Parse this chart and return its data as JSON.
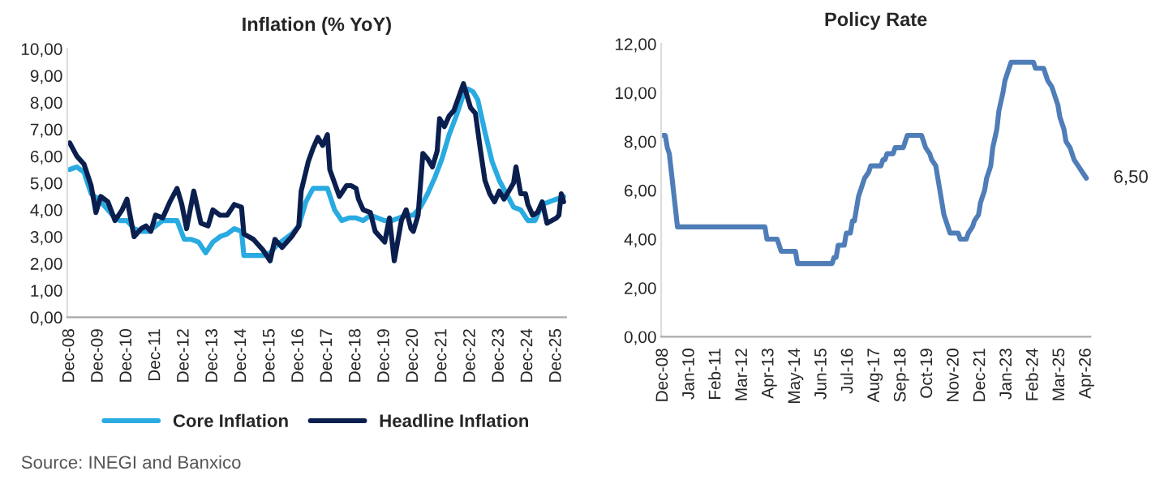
{
  "chart_data": [
    {
      "type": "line",
      "title": "Inflation (% YoY)",
      "legend": "bottom",
      "grid": false,
      "xlim": [
        "2008-11",
        "2026-04"
      ],
      "xticks": [
        {
          "value": "2008-12",
          "label": "Dec-08"
        },
        {
          "value": "2009-12",
          "label": "Dec-09"
        },
        {
          "value": "2010-12",
          "label": "Dec-10"
        },
        {
          "value": "2011-12",
          "label": "Dec-11"
        },
        {
          "value": "2012-12",
          "label": "Dec-12"
        },
        {
          "value": "2013-12",
          "label": "Dec-13"
        },
        {
          "value": "2014-12",
          "label": "Dec-14"
        },
        {
          "value": "2015-12",
          "label": "Dec-15"
        },
        {
          "value": "2016-12",
          "label": "Dec-16"
        },
        {
          "value": "2017-12",
          "label": "Dec-17"
        },
        {
          "value": "2018-12",
          "label": "Dec-18"
        },
        {
          "value": "2019-12",
          "label": "Dec-19"
        },
        {
          "value": "2020-12",
          "label": "Dec-20"
        },
        {
          "value": "2021-12",
          "label": "Dec-21"
        },
        {
          "value": "2022-12",
          "label": "Dec-22"
        },
        {
          "value": "2023-12",
          "label": "Dec-23"
        },
        {
          "value": "2024-12",
          "label": "Dec-24"
        },
        {
          "value": "2025-12",
          "label": "Dec-25"
        }
      ],
      "ylim": [
        0,
        10
      ],
      "yticks": [
        {
          "value": 0,
          "label": "0,00"
        },
        {
          "value": 1,
          "label": "1,00"
        },
        {
          "value": 2,
          "label": "2,00"
        },
        {
          "value": 3,
          "label": "3,00"
        },
        {
          "value": 4,
          "label": "4,00"
        },
        {
          "value": 5,
          "label": "5,00"
        },
        {
          "value": 6,
          "label": "6,00"
        },
        {
          "value": 7,
          "label": "7,00"
        },
        {
          "value": 8,
          "label": "8,00"
        },
        {
          "value": 9,
          "label": "9,00"
        },
        {
          "value": 10,
          "label": "10,00"
        }
      ],
      "series": [
        {
          "name": "Core Inflation",
          "color": "#29abe2",
          "x": [
            "2008-12",
            "2009-03",
            "2009-06",
            "2009-09",
            "2009-12",
            "2010-03",
            "2010-06",
            "2010-09",
            "2010-12",
            "2011-03",
            "2011-06",
            "2011-09",
            "2011-12",
            "2012-03",
            "2012-06",
            "2012-09",
            "2012-12",
            "2013-03",
            "2013-06",
            "2013-09",
            "2013-12",
            "2014-03",
            "2014-06",
            "2014-09",
            "2014-12",
            "2015-01",
            "2015-06",
            "2015-09",
            "2015-12",
            "2016-03",
            "2016-06",
            "2016-09",
            "2016-12",
            "2017-03",
            "2017-06",
            "2017-09",
            "2017-12",
            "2018-03",
            "2018-06",
            "2018-09",
            "2018-12",
            "2019-03",
            "2019-06",
            "2019-09",
            "2019-12",
            "2020-03",
            "2020-06",
            "2020-09",
            "2020-12",
            "2021-03",
            "2021-06",
            "2021-09",
            "2021-12",
            "2022-03",
            "2022-06",
            "2022-09",
            "2022-11",
            "2023-01",
            "2023-03",
            "2023-06",
            "2023-09",
            "2023-12",
            "2024-03",
            "2024-06",
            "2024-09",
            "2024-12",
            "2025-03",
            "2025-06",
            "2025-09",
            "2025-12",
            "2026-03"
          ],
          "values": [
            5.5,
            5.6,
            5.4,
            4.6,
            4.4,
            4.1,
            3.8,
            3.6,
            3.6,
            3.3,
            3.2,
            3.2,
            3.4,
            3.6,
            3.6,
            3.6,
            2.9,
            2.9,
            2.8,
            2.4,
            2.8,
            3.0,
            3.1,
            3.3,
            3.2,
            2.3,
            2.3,
            2.3,
            2.4,
            2.7,
            2.9,
            3.1,
            3.4,
            4.3,
            4.8,
            4.8,
            4.8,
            4.0,
            3.6,
            3.7,
            3.7,
            3.6,
            3.8,
            3.7,
            3.6,
            3.6,
            3.7,
            3.8,
            3.8,
            4.1,
            4.6,
            5.2,
            5.9,
            6.8,
            7.5,
            8.3,
            8.5,
            8.4,
            8.1,
            6.9,
            5.8,
            5.1,
            4.6,
            4.1,
            4.0,
            3.6,
            3.6,
            4.2,
            4.3,
            4.4,
            4.5
          ]
        },
        {
          "name": "Headline Inflation",
          "color": "#0b1f4f",
          "x": [
            "2008-12",
            "2009-03",
            "2009-06",
            "2009-09",
            "2009-11",
            "2010-01",
            "2010-04",
            "2010-07",
            "2010-10",
            "2010-12",
            "2011-03",
            "2011-06",
            "2011-08",
            "2011-10",
            "2011-12",
            "2012-03",
            "2012-06",
            "2012-09",
            "2012-11",
            "2013-01",
            "2013-04",
            "2013-07",
            "2013-10",
            "2013-12",
            "2014-03",
            "2014-06",
            "2014-09",
            "2014-12",
            "2015-01",
            "2015-05",
            "2015-09",
            "2015-12",
            "2016-02",
            "2016-05",
            "2016-09",
            "2016-12",
            "2017-01",
            "2017-04",
            "2017-06",
            "2017-08",
            "2017-10",
            "2017-12",
            "2018-01",
            "2018-03",
            "2018-05",
            "2018-08",
            "2018-10",
            "2018-12",
            "2019-01",
            "2019-03",
            "2019-06",
            "2019-08",
            "2019-10",
            "2019-12",
            "2020-02",
            "2020-04",
            "2020-07",
            "2020-09",
            "2020-11",
            "2020-12",
            "2021-02",
            "2021-04",
            "2021-06",
            "2021-08",
            "2021-10",
            "2021-11",
            "2022-01",
            "2022-03",
            "2022-05",
            "2022-07",
            "2022-09",
            "2022-10",
            "2022-12",
            "2023-02",
            "2023-04",
            "2023-06",
            "2023-08",
            "2023-10",
            "2023-12",
            "2024-02",
            "2024-04",
            "2024-06",
            "2024-07",
            "2024-09",
            "2024-11",
            "2024-12",
            "2025-02",
            "2025-04",
            "2025-06",
            "2025-08",
            "2025-10",
            "2025-12",
            "2026-01",
            "2026-02",
            "2026-03"
          ],
          "values": [
            6.5,
            6.0,
            5.7,
            4.9,
            3.9,
            4.5,
            4.3,
            3.6,
            4.0,
            4.4,
            3.0,
            3.3,
            3.4,
            3.2,
            3.8,
            3.7,
            4.3,
            4.8,
            4.2,
            3.3,
            4.7,
            3.5,
            3.4,
            4.0,
            3.8,
            3.8,
            4.2,
            4.1,
            3.1,
            2.9,
            2.5,
            2.1,
            2.9,
            2.6,
            3.0,
            3.4,
            4.7,
            5.8,
            6.3,
            6.7,
            6.4,
            6.8,
            5.5,
            5.0,
            4.5,
            4.9,
            4.9,
            4.8,
            4.4,
            4.0,
            3.9,
            3.2,
            3.0,
            2.8,
            3.7,
            2.1,
            3.6,
            4.0,
            3.3,
            3.2,
            3.8,
            6.1,
            5.9,
            5.6,
            6.2,
            7.4,
            7.1,
            7.5,
            7.7,
            8.2,
            8.7,
            8.4,
            7.8,
            7.6,
            6.3,
            5.1,
            4.6,
            4.3,
            4.7,
            4.4,
            4.7,
            5.0,
            5.6,
            4.6,
            4.6,
            4.2,
            3.8,
            3.9,
            4.3,
            3.5,
            3.6,
            3.7,
            3.8,
            4.6,
            4.3
          ]
        }
      ],
      "annotations": [
        "Source: INEGI and Banxico"
      ]
    },
    {
      "type": "line",
      "title": "Policy Rate",
      "grid": false,
      "xlim": [
        "2008-11",
        "2026-06"
      ],
      "xticks": [
        {
          "value": "2008-12",
          "label": "Dec-08"
        },
        {
          "value": "2010-01",
          "label": "Jan-10"
        },
        {
          "value": "2011-02",
          "label": "Feb-11"
        },
        {
          "value": "2012-03",
          "label": "Mar-12"
        },
        {
          "value": "2013-04",
          "label": "Apr-13"
        },
        {
          "value": "2014-05",
          "label": "May-14"
        },
        {
          "value": "2015-06",
          "label": "Jun-15"
        },
        {
          "value": "2016-07",
          "label": "Jul-16"
        },
        {
          "value": "2017-08",
          "label": "Aug-17"
        },
        {
          "value": "2018-09",
          "label": "Sep-18"
        },
        {
          "value": "2019-10",
          "label": "Oct-19"
        },
        {
          "value": "2020-11",
          "label": "Nov-20"
        },
        {
          "value": "2021-12",
          "label": "Dec-21"
        },
        {
          "value": "2023-01",
          "label": "Jan-23"
        },
        {
          "value": "2024-02",
          "label": "Feb-24"
        },
        {
          "value": "2025-03",
          "label": "Mar-25"
        },
        {
          "value": "2026-04",
          "label": "Apr-26"
        }
      ],
      "ylim": [
        0,
        12
      ],
      "yticks": [
        {
          "value": 0,
          "label": "0,00"
        },
        {
          "value": 2,
          "label": "2,00"
        },
        {
          "value": 4,
          "label": "4,00"
        },
        {
          "value": 6,
          "label": "6,00"
        },
        {
          "value": 8,
          "label": "8,00"
        },
        {
          "value": 10,
          "label": "10,00"
        },
        {
          "value": 12,
          "label": "12,00"
        }
      ],
      "series": [
        {
          "color": "#4f7db8",
          "x": [
            "2008-12",
            "2009-01",
            "2009-02",
            "2009-03",
            "2009-04",
            "2009-05",
            "2009-06",
            "2009-07",
            "2013-02",
            "2013-03",
            "2013-08",
            "2013-09",
            "2013-10",
            "2014-05",
            "2014-06",
            "2015-11",
            "2015-12",
            "2016-01",
            "2016-02",
            "2016-05",
            "2016-06",
            "2016-08",
            "2016-09",
            "2016-10",
            "2016-11",
            "2016-12",
            "2017-02",
            "2017-03",
            "2017-05",
            "2017-06",
            "2017-11",
            "2017-12",
            "2018-01",
            "2018-02",
            "2018-05",
            "2018-06",
            "2018-10",
            "2018-11",
            "2018-12",
            "2019-07",
            "2019-08",
            "2019-09",
            "2019-11",
            "2019-12",
            "2020-02",
            "2020-03",
            "2020-04",
            "2020-05",
            "2020-06",
            "2020-08",
            "2020-09",
            "2021-01",
            "2021-02",
            "2021-05",
            "2021-06",
            "2021-08",
            "2021-09",
            "2021-11",
            "2021-12",
            "2022-02",
            "2022-03",
            "2022-05",
            "2022-06",
            "2022-08",
            "2022-09",
            "2022-11",
            "2022-12",
            "2023-02",
            "2023-03",
            "2024-02",
            "2024-03",
            "2024-07",
            "2024-08",
            "2024-09",
            "2024-11",
            "2024-12",
            "2025-02",
            "2025-03",
            "2025-05",
            "2025-06",
            "2025-08",
            "2025-09",
            "2025-10",
            "2025-12",
            "2026-02",
            "2026-04"
          ],
          "values": [
            8.25,
            8.25,
            7.75,
            7.5,
            6.75,
            6.0,
            5.25,
            4.5,
            4.5,
            4.0,
            4.0,
            3.75,
            3.5,
            3.5,
            3.0,
            3.0,
            3.25,
            3.25,
            3.75,
            3.75,
            4.25,
            4.25,
            4.75,
            4.75,
            5.25,
            5.75,
            6.25,
            6.5,
            6.75,
            7.0,
            7.0,
            7.25,
            7.25,
            7.5,
            7.5,
            7.75,
            7.75,
            8.0,
            8.25,
            8.25,
            8.0,
            7.75,
            7.5,
            7.25,
            7.0,
            6.5,
            6.0,
            5.5,
            5.0,
            4.5,
            4.25,
            4.25,
            4.0,
            4.0,
            4.25,
            4.5,
            4.75,
            5.0,
            5.5,
            6.0,
            6.5,
            7.0,
            7.75,
            8.5,
            9.25,
            10.0,
            10.5,
            11.0,
            11.25,
            11.25,
            11.0,
            11.0,
            10.75,
            10.5,
            10.25,
            10.0,
            9.5,
            9.0,
            8.5,
            8.0,
            7.75,
            7.5,
            7.25,
            7.0,
            6.75,
            6.5
          ]
        }
      ],
      "annotations": [
        {
          "text": "6,50",
          "x": "2026-04",
          "y": 6.5
        }
      ]
    }
  ]
}
